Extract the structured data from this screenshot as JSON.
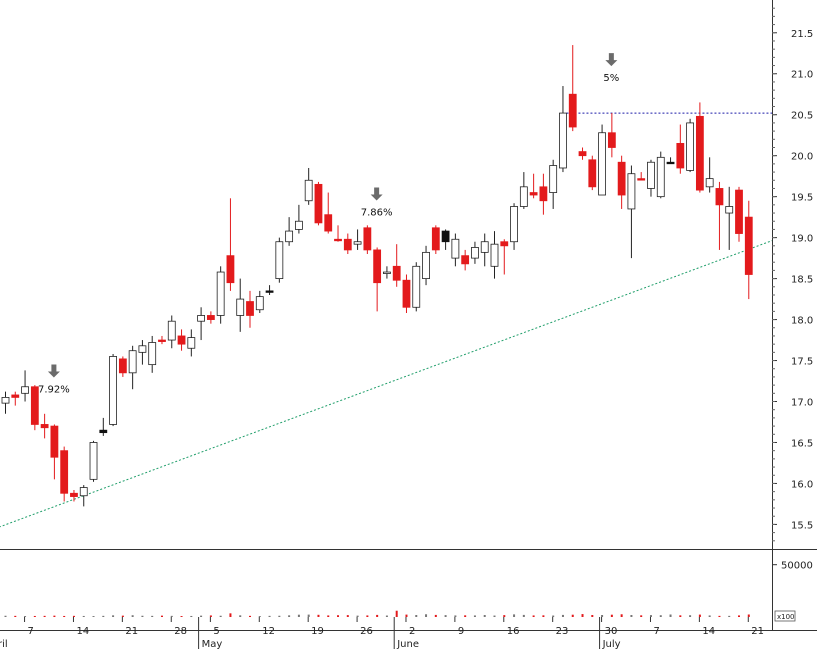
{
  "chart_data": {
    "type": "candlestick",
    "title": "",
    "price_axis": {
      "ylim": [
        15.2,
        21.9
      ],
      "ticks": [
        "15.5",
        "16.0",
        "16.5",
        "17.0",
        "17.5",
        "18.0",
        "18.5",
        "19.0",
        "19.5",
        "20.0",
        "20.5",
        "21.0",
        "21.5"
      ]
    },
    "volume_axis": {
      "ylim": [
        0,
        65000
      ],
      "ticks": [
        "50000"
      ],
      "unit_label": "x100"
    },
    "x_axis": {
      "month_labels": [
        {
          "label": "ril",
          "index": -1
        },
        {
          "label": "May",
          "index": 20
        },
        {
          "label": "June",
          "index": 40
        },
        {
          "label": "July",
          "index": 61
        }
      ],
      "day_labels": [
        {
          "label": "7",
          "index": 2
        },
        {
          "label": "14",
          "index": 7
        },
        {
          "label": "21",
          "index": 12
        },
        {
          "label": "28",
          "index": 17
        },
        {
          "label": "5",
          "index": 21
        },
        {
          "label": "12",
          "index": 26
        },
        {
          "label": "19",
          "index": 31
        },
        {
          "label": "26",
          "index": 36
        },
        {
          "label": "2",
          "index": 41
        },
        {
          "label": "9",
          "index": 46
        },
        {
          "label": "16",
          "index": 51
        },
        {
          "label": "23",
          "index": 56
        },
        {
          "label": "30",
          "index": 61
        },
        {
          "label": "7",
          "index": 66
        },
        {
          "label": "14",
          "index": 71
        },
        {
          "label": "21",
          "index": 76
        }
      ]
    },
    "candles": [
      [
        17.05,
        17.12,
        16.85,
        16.98,
        "bull",
        1200
      ],
      [
        17.05,
        17.12,
        16.95,
        17.08,
        "red",
        1100
      ],
      [
        17.1,
        17.38,
        17.0,
        17.18,
        "bull",
        900
      ],
      [
        17.18,
        17.2,
        16.65,
        16.72,
        "red",
        1000
      ],
      [
        16.72,
        16.85,
        16.55,
        16.68,
        "red",
        1100
      ],
      [
        16.7,
        16.72,
        16.05,
        16.32,
        "red",
        1300
      ],
      [
        16.4,
        16.45,
        15.78,
        15.88,
        "red",
        1000
      ],
      [
        15.88,
        15.92,
        15.78,
        15.84,
        "red",
        1100
      ],
      [
        15.85,
        15.98,
        15.72,
        15.95,
        "bull",
        1000
      ],
      [
        16.05,
        16.52,
        16.02,
        16.5,
        "bull",
        900
      ],
      [
        16.62,
        16.8,
        16.58,
        16.65,
        "black",
        1100
      ],
      [
        16.72,
        17.58,
        16.7,
        17.55,
        "bull",
        1600
      ],
      [
        17.52,
        17.55,
        17.3,
        17.35,
        "red",
        1300
      ],
      [
        17.35,
        17.68,
        17.15,
        17.62,
        "bull",
        1700
      ],
      [
        17.6,
        17.75,
        17.45,
        17.68,
        "bull",
        1200
      ],
      [
        17.45,
        17.8,
        17.35,
        17.72,
        "bull",
        1100
      ],
      [
        17.75,
        17.8,
        17.7,
        17.75,
        "red",
        1300
      ],
      [
        17.75,
        18.05,
        17.65,
        17.98,
        "bull",
        1100
      ],
      [
        17.8,
        17.88,
        17.62,
        17.7,
        "red",
        900
      ],
      [
        17.65,
        17.88,
        17.55,
        17.78,
        "bull",
        1000
      ],
      [
        17.98,
        18.15,
        17.75,
        18.05,
        "bull",
        1300
      ],
      [
        18.05,
        18.1,
        17.95,
        18.0,
        "red",
        1500
      ],
      [
        18.05,
        18.65,
        17.95,
        18.58,
        "bull",
        1200
      ],
      [
        18.78,
        19.48,
        18.35,
        18.45,
        "red",
        3500
      ],
      [
        18.25,
        18.5,
        17.85,
        18.05,
        "bull",
        1600
      ],
      [
        18.22,
        18.35,
        17.9,
        18.05,
        "red",
        1100
      ],
      [
        18.12,
        18.35,
        18.08,
        18.28,
        "bull",
        900
      ],
      [
        18.35,
        18.42,
        18.3,
        18.35,
        "black",
        1100
      ],
      [
        18.5,
        19.0,
        18.45,
        18.95,
        "bull",
        1200
      ],
      [
        18.95,
        19.25,
        18.9,
        19.08,
        "bull",
        1600
      ],
      [
        19.1,
        19.4,
        19.05,
        19.2,
        "bull",
        2200
      ],
      [
        19.45,
        19.85,
        19.4,
        19.7,
        "bull",
        2300
      ],
      [
        19.65,
        19.68,
        19.15,
        19.18,
        "red",
        2100
      ],
      [
        19.28,
        19.55,
        19.05,
        19.08,
        "red",
        1500
      ],
      [
        18.98,
        19.15,
        18.95,
        18.98,
        "red",
        1700
      ],
      [
        18.98,
        19.05,
        18.8,
        18.85,
        "red",
        1800
      ],
      [
        18.92,
        19.1,
        18.85,
        18.95,
        "bull",
        1300
      ],
      [
        19.12,
        19.15,
        18.8,
        18.85,
        "red",
        1500
      ],
      [
        18.85,
        18.88,
        18.1,
        18.45,
        "red",
        2000
      ],
      [
        18.58,
        18.65,
        18.5,
        18.58,
        "bull",
        1400
      ],
      [
        18.65,
        18.92,
        18.4,
        18.48,
        "red",
        6000
      ],
      [
        18.48,
        18.55,
        18.08,
        18.15,
        "red",
        2300
      ],
      [
        18.15,
        18.7,
        18.1,
        18.65,
        "bull",
        1900
      ],
      [
        18.5,
        18.9,
        18.42,
        18.82,
        "bull",
        2600
      ],
      [
        19.12,
        19.15,
        18.8,
        18.85,
        "red",
        2000
      ],
      [
        18.95,
        19.1,
        18.85,
        19.08,
        "black",
        1800
      ],
      [
        18.98,
        19.05,
        18.65,
        18.75,
        "bull",
        1500
      ],
      [
        18.78,
        18.85,
        18.6,
        18.68,
        "red",
        1600
      ],
      [
        18.75,
        18.95,
        18.68,
        18.88,
        "bull",
        1500
      ],
      [
        18.82,
        19.05,
        18.65,
        18.95,
        "bull",
        1900
      ],
      [
        18.92,
        19.08,
        18.5,
        18.65,
        "bull",
        1400
      ],
      [
        18.95,
        18.98,
        18.55,
        18.9,
        "red",
        1800
      ],
      [
        18.95,
        19.42,
        18.85,
        19.38,
        "bull",
        2500
      ],
      [
        19.38,
        19.8,
        19.35,
        19.62,
        "bull",
        2000
      ],
      [
        19.55,
        19.78,
        19.48,
        19.52,
        "red",
        1500
      ],
      [
        19.62,
        19.78,
        19.28,
        19.45,
        "red",
        1600
      ],
      [
        19.55,
        19.95,
        19.35,
        19.88,
        "bull",
        1400
      ],
      [
        19.85,
        20.85,
        19.8,
        20.52,
        "bull",
        2000
      ],
      [
        20.75,
        21.35,
        20.3,
        20.35,
        "red",
        2200
      ],
      [
        20.05,
        20.1,
        19.95,
        20.0,
        "red",
        2800
      ],
      [
        19.95,
        20.0,
        19.58,
        19.62,
        "red",
        1900
      ],
      [
        19.52,
        20.38,
        19.52,
        20.28,
        "bull",
        1900
      ],
      [
        20.28,
        20.52,
        19.98,
        20.1,
        "red",
        2200
      ],
      [
        19.92,
        20.0,
        19.35,
        19.52,
        "red",
        2600
      ],
      [
        19.78,
        19.88,
        18.75,
        19.35,
        "bull",
        1900
      ],
      [
        19.72,
        19.8,
        19.7,
        19.72,
        "red",
        1600
      ],
      [
        19.6,
        19.95,
        19.5,
        19.92,
        "bull",
        1800
      ],
      [
        19.5,
        20.05,
        19.48,
        19.98,
        "bull",
        1700
      ],
      [
        19.92,
        19.98,
        19.9,
        19.92,
        "black",
        2400
      ],
      [
        20.15,
        20.38,
        19.78,
        19.85,
        "red",
        1600
      ],
      [
        19.82,
        20.45,
        19.8,
        20.4,
        "bull",
        1700
      ],
      [
        20.48,
        20.65,
        19.55,
        19.58,
        "red",
        2300
      ],
      [
        19.62,
        19.98,
        19.55,
        19.72,
        "bull",
        1500
      ],
      [
        19.6,
        19.68,
        18.85,
        19.4,
        "red",
        1100
      ],
      [
        19.3,
        19.62,
        18.85,
        19.38,
        "bull",
        1100
      ],
      [
        19.58,
        19.62,
        18.95,
        19.05,
        "red",
        1500
      ],
      [
        19.25,
        19.45,
        18.25,
        18.55,
        "red",
        2400
      ]
    ],
    "resistance_level": 20.52,
    "support_trendline": {
      "from": {
        "index": -1,
        "price": 15.45
      },
      "to": {
        "index": 77,
        "price": 18.9
      }
    },
    "annotations": [
      {
        "text": "7.92%",
        "index": 5
      },
      {
        "text": "7.86%",
        "index": 38
      },
      {
        "text": "5%",
        "index": 62
      }
    ]
  }
}
